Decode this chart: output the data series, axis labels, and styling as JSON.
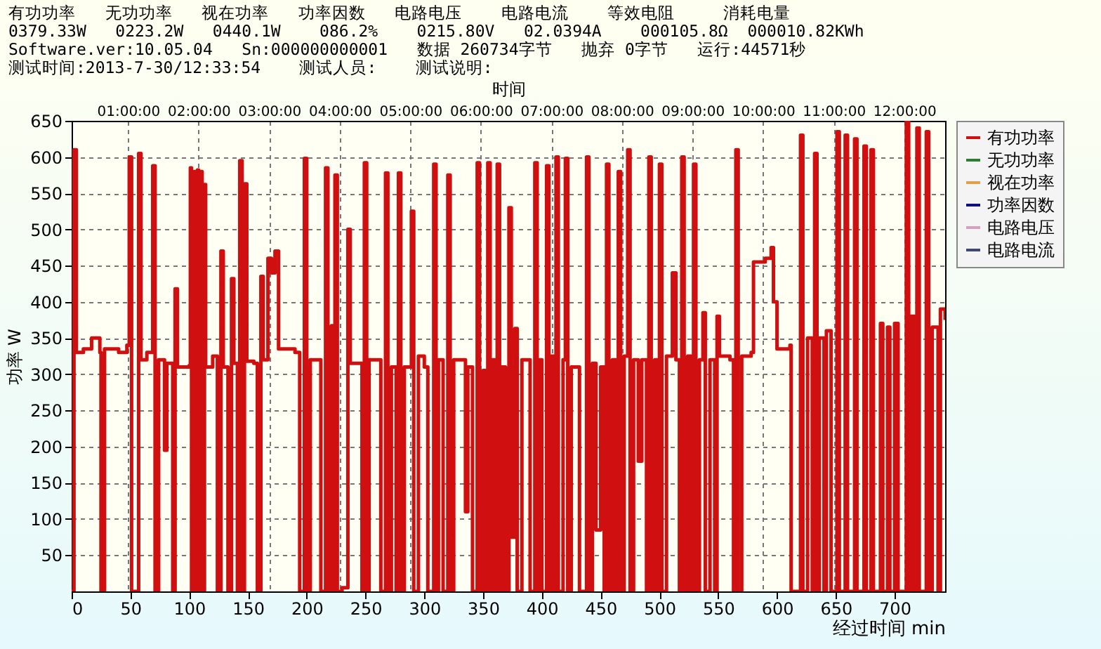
{
  "chart_data": {
    "type": "step",
    "xlabel": "经过时间 min",
    "ylabel": "功率 W",
    "x2label": "时间",
    "annotations": [
      "有功功率   无功功率   视在功率   功率因数   电路电压    电路电流    等效电阻     消耗电量",
      "0379.33W   0223.2W   0440.1W    086.2%    0215.80V   02.0394A    000105.8Ω  000010.82KWh",
      "Software.ver:10.05.04   Sn:000000000001   数据 260734字节   抛弃 0字节   运行:44571秒",
      "测试时间:2013-7-30/12:33:54    测试人员:    测试说明:"
    ],
    "xlim": [
      0,
      743
    ],
    "ylim": [
      0,
      650
    ],
    "xticks": [
      0,
      50,
      100,
      150,
      200,
      250,
      300,
      350,
      400,
      450,
      500,
      550,
      600,
      650,
      700
    ],
    "yticks": [
      50,
      100,
      150,
      200,
      250,
      300,
      350,
      400,
      450,
      500,
      550,
      600,
      650
    ],
    "x2lim": [
      0.2,
      12.58
    ],
    "x2ticks": [
      {
        "value": 1,
        "label": "01:00:00"
      },
      {
        "value": 2,
        "label": "02:00:00"
      },
      {
        "value": 3,
        "label": "03:00:00"
      },
      {
        "value": 4,
        "label": "04:00:00"
      },
      {
        "value": 5,
        "label": "05:00:00"
      },
      {
        "value": 6,
        "label": "06:00:00"
      },
      {
        "value": 7,
        "label": "07:00:00"
      },
      {
        "value": 8,
        "label": "08:00:00"
      },
      {
        "value": 9,
        "label": "09:00:00"
      },
      {
        "value": 10,
        "label": "10:00:00"
      },
      {
        "value": 11,
        "label": "11:00:00"
      },
      {
        "value": 12,
        "label": "12:00:00"
      }
    ],
    "grid": true,
    "legend": "top right",
    "series": [
      {
        "name": "有功功率",
        "color": "#d01010",
        "x": [
          0,
          2,
          4,
          10,
          17,
          24,
          25,
          28,
          40,
          47,
          49,
          51,
          55,
          57,
          59,
          64,
          69,
          71,
          74,
          79,
          81,
          86,
          88,
          90,
          100,
          101,
          102,
          104,
          105,
          107,
          108,
          110,
          111,
          113,
          114,
          120,
          124,
          127,
          129,
          133,
          136,
          138,
          141,
          143,
          145,
          147,
          149,
          155,
          158,
          161,
          163,
          167,
          170,
          173,
          176,
          190,
          194,
          198,
          200,
          203,
          212,
          216,
          218,
          221,
          222,
          224,
          226,
          230,
          233,
          235,
          237,
          247,
          249,
          251,
          253,
          260,
          263,
          267,
          269,
          272,
          276,
          278,
          280,
          283,
          289,
          291,
          295,
          300,
          303,
          308,
          310,
          312,
          316,
          320,
          322,
          325,
          335,
          337,
          341,
          345,
          347,
          350,
          352,
          354,
          356,
          358,
          360,
          362,
          364,
          366,
          369,
          372,
          374,
          377,
          379,
          383,
          390,
          394,
          396,
          398,
          400,
          404,
          406,
          408,
          410,
          412,
          414,
          418,
          420,
          422,
          425,
          432,
          438,
          440,
          443,
          446,
          450,
          453,
          455,
          457,
          460,
          463,
          465,
          467,
          470,
          473,
          475,
          478,
          482,
          485,
          489,
          491,
          493,
          496,
          498,
          500,
          502,
          506,
          511,
          514,
          517,
          519,
          521,
          524,
          527,
          529,
          531,
          534,
          537,
          539,
          543,
          547,
          549,
          551,
          560,
          563,
          565,
          567,
          570,
          578,
          580,
          590,
          595,
          597,
          600,
          611,
          612,
          618,
          620,
          622,
          626,
          630,
          632,
          634,
          636,
          640,
          642,
          646,
          651,
          653,
          656,
          658,
          660,
          664,
          666,
          668,
          672,
          674,
          676,
          678,
          680,
          682,
          688,
          690,
          694,
          696,
          700,
          703,
          706,
          710,
          712,
          714,
          717,
          719,
          721,
          725,
          727,
          729,
          732,
          737,
          739,
          743
        ],
        "values": [
          0,
          610,
          330,
          335,
          350,
          330,
          0,
          335,
          330,
          340,
          600,
          0,
          0,
          605,
          320,
          330,
          588,
          0,
          320,
          195,
          315,
          0,
          418,
          310,
          312,
          585,
          0,
          580,
          0,
          582,
          0,
          580,
          0,
          562,
          310,
          325,
          0,
          470,
          310,
          0,
          432,
          315,
          0,
          595,
          0,
          563,
          318,
          315,
          0,
          435,
          320,
          460,
          440,
          470,
          335,
          330,
          0,
          598,
          0,
          320,
          0,
          585,
          0,
          367,
          0,
          575,
          0,
          5,
          5,
          500,
          315,
          0,
          592,
          0,
          320,
          320,
          0,
          578,
          0,
          310,
          0,
          578,
          0,
          310,
          525,
          0,
          325,
          310,
          0,
          590,
          0,
          320,
          0,
          575,
          0,
          320,
          110,
          310,
          0,
          592,
          0,
          305,
          0,
          592,
          0,
          320,
          0,
          590,
          0,
          310,
          0,
          530,
          75,
          363,
          0,
          320,
          0,
          592,
          0,
          320,
          0,
          588,
          0,
          325,
          0,
          600,
          0,
          320,
          598,
          0,
          310,
          0,
          600,
          0,
          315,
          85,
          310,
          0,
          590,
          0,
          320,
          0,
          580,
          0,
          325,
          610,
          0,
          320,
          180,
          320,
          0,
          600,
          0,
          320,
          0,
          590,
          0,
          325,
          440,
          320,
          0,
          600,
          0,
          325,
          0,
          590,
          0,
          320,
          385,
          0,
          320,
          0,
          380,
          325,
          320,
          0,
          610,
          0,
          325,
          330,
          455,
          460,
          475,
          400,
          335,
          340,
          0,
          0,
          630,
          0,
          350,
          0,
          605,
          0,
          350,
          0,
          360,
          0,
          635,
          0,
          0,
          630,
          0,
          0,
          625,
          0,
          0,
          615,
          0,
          0,
          610,
          0,
          370,
          0,
          365,
          0,
          370,
          0,
          0,
          650,
          0,
          380,
          0,
          640,
          0,
          0,
          635,
          0,
          365,
          0,
          390,
          375
        ]
      },
      {
        "name": "无功功率",
        "color": "#2e7d32"
      },
      {
        "name": "视在功率",
        "color": "#e0a050"
      },
      {
        "name": "功率因数",
        "color": "#101080"
      },
      {
        "name": "电路电压",
        "color": "#d8a0c0"
      },
      {
        "name": "电路电流",
        "color": "#404a70"
      }
    ]
  }
}
